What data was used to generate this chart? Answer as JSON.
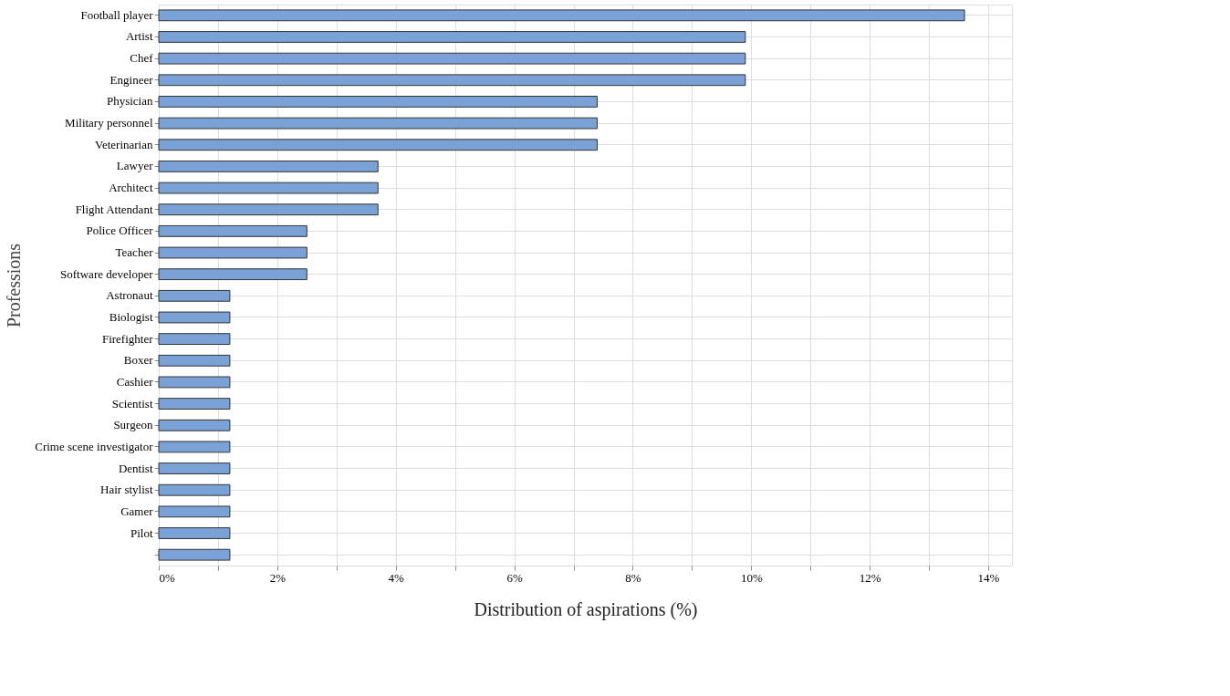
{
  "chart_data": {
    "type": "bar",
    "orientation": "horizontal",
    "xlabel": "Distribution of aspirations (%)",
    "ylabel": "Professions",
    "categories": [
      "Football player",
      "Artist",
      "Chef",
      "Engineer",
      "Physician",
      "Military personnel",
      "Veterinarian",
      "Lawyer",
      "Architect",
      "Flight Attendant",
      "Police Officer",
      "Teacher",
      "Software developer",
      "Astronaut",
      "Biologist",
      "Firefighter",
      "Boxer",
      "Cashier",
      "Scientist",
      "Surgeon",
      "Crime scene investigator",
      "Dentist",
      "Hair stylist",
      "Gamer",
      "Pilot",
      null
    ],
    "values": [
      13.6,
      9.9,
      9.9,
      9.9,
      7.4,
      7.4,
      7.4,
      3.7,
      3.7,
      3.7,
      2.5,
      2.5,
      2.5,
      1.2,
      1.2,
      1.2,
      1.2,
      1.2,
      1.2,
      1.2,
      1.2,
      1.2,
      1.2,
      1.2,
      1.2,
      1.2
    ],
    "color": "#7aa2d6",
    "xlim": [
      0,
      14.4
    ],
    "xticks": [
      {
        "value": 0,
        "label": "0%"
      },
      {
        "value": 1,
        "label": null
      },
      {
        "value": 2,
        "label": "2%"
      },
      {
        "value": 3,
        "label": null
      },
      {
        "value": 4,
        "label": "4%"
      },
      {
        "value": 5,
        "label": null
      },
      {
        "value": 6,
        "label": "6%"
      },
      {
        "value": 7,
        "label": null
      },
      {
        "value": 8,
        "label": "8%"
      },
      {
        "value": 9,
        "label": null
      },
      {
        "value": 10,
        "label": "10%"
      },
      {
        "value": 11,
        "label": null
      },
      {
        "value": 12,
        "label": "12%"
      },
      {
        "value": 13,
        "label": null
      },
      {
        "value": 14,
        "label": "14%"
      }
    ],
    "grid": true
  }
}
